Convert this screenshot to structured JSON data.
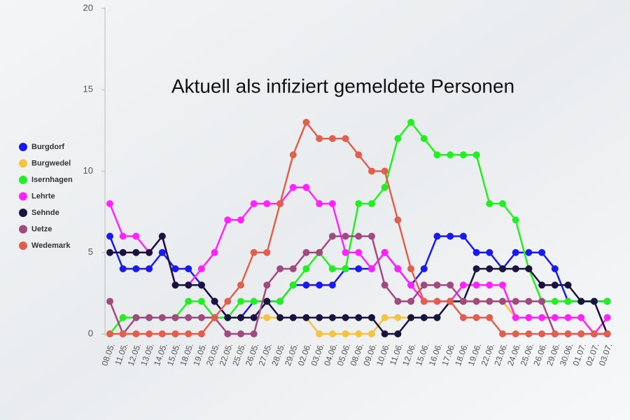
{
  "chart_data": {
    "type": "line",
    "title": "Aktuell als infiziert gemeldete Personen",
    "categories": [
      "08.05.",
      "11.05.",
      "12.05.",
      "13.05.",
      "14.05.",
      "15.05.",
      "18.05.",
      "19.05.",
      "20.05.",
      "22.05.",
      "25.05.",
      "26.05.",
      "27.05.",
      "28.05.",
      "29.05.",
      "02.06.",
      "03.06.",
      "04.06.",
      "05.06.",
      "08.06.",
      "09.06.",
      "10.06.",
      "11.06.",
      "12.06.",
      "15.06.",
      "16.06.",
      "17.06.",
      "18.06.",
      "19.06.",
      "22.06.",
      "23.06.",
      "24.06.",
      "25.06.",
      "26.06.",
      "29.06.",
      "30.06.",
      "01.07.",
      "02.07.",
      "03.07."
    ],
    "series": [
      {
        "name": "Burgdorf",
        "color": "#1a1aee",
        "values": [
          6,
          4,
          4,
          4,
          5,
          4,
          4,
          3,
          2,
          1,
          1,
          2,
          2,
          2,
          3,
          3,
          3,
          3,
          4,
          4,
          4,
          5,
          4,
          3,
          4,
          6,
          6,
          6,
          5,
          5,
          4,
          5,
          5,
          5,
          4,
          2,
          2,
          2,
          2
        ]
      },
      {
        "name": "Burgwedel",
        "color": "#f5c242",
        "values": [
          0,
          0,
          0,
          0,
          0,
          0,
          0,
          0,
          1,
          1,
          1,
          1,
          1,
          1,
          1,
          1,
          0,
          0,
          0,
          0,
          0,
          1,
          1,
          1,
          1,
          1,
          2,
          2,
          2,
          2,
          2,
          1,
          1,
          1,
          1,
          1,
          1,
          0,
          0
        ]
      },
      {
        "name": "Isernhagen",
        "color": "#22ee22",
        "values": [
          0,
          1,
          1,
          1,
          1,
          1,
          2,
          2,
          1,
          1,
          2,
          2,
          2,
          2,
          3,
          4,
          5,
          4,
          4,
          8,
          8,
          9,
          12,
          13,
          12,
          11,
          11,
          11,
          11,
          8,
          8,
          7,
          4,
          2,
          2,
          2,
          2,
          2,
          2
        ]
      },
      {
        "name": "Lehrte",
        "color": "#ff22ff",
        "values": [
          8,
          6,
          6,
          5,
          6,
          3,
          3,
          4,
          5,
          7,
          7,
          8,
          8,
          8,
          9,
          9,
          8,
          8,
          5,
          5,
          4,
          5,
          4,
          3,
          2,
          2,
          2,
          3,
          3,
          3,
          3,
          1,
          1,
          1,
          1,
          1,
          1,
          0,
          1
        ]
      },
      {
        "name": "Sehnde",
        "color": "#1a1240",
        "values": [
          5,
          5,
          5,
          5,
          6,
          3,
          3,
          3,
          2,
          1,
          1,
          1,
          2,
          1,
          1,
          1,
          1,
          1,
          1,
          1,
          1,
          0,
          0,
          1,
          1,
          1,
          2,
          2,
          4,
          4,
          4,
          4,
          4,
          3,
          3,
          3,
          2,
          2,
          0
        ]
      },
      {
        "name": "Uetze",
        "color": "#a04a80",
        "values": [
          2,
          0,
          1,
          1,
          1,
          1,
          1,
          1,
          1,
          0,
          0,
          0,
          3,
          4,
          4,
          5,
          5,
          6,
          6,
          6,
          6,
          3,
          2,
          2,
          3,
          3,
          3,
          2,
          2,
          2,
          2,
          2,
          2,
          2,
          0,
          0,
          0,
          0,
          0
        ]
      },
      {
        "name": "Wedemark",
        "color": "#e06050",
        "values": [
          0,
          0,
          0,
          0,
          0,
          0,
          0,
          0,
          1,
          2,
          3,
          5,
          5,
          8,
          11,
          13,
          12,
          12,
          12,
          11,
          10,
          10,
          7,
          4,
          2,
          2,
          2,
          1,
          1,
          1,
          0,
          0,
          0,
          0,
          0,
          0,
          0,
          0,
          0
        ]
      }
    ],
    "ylim": [
      0,
      20
    ],
    "yticks": [
      0,
      5,
      10,
      15,
      20
    ]
  }
}
